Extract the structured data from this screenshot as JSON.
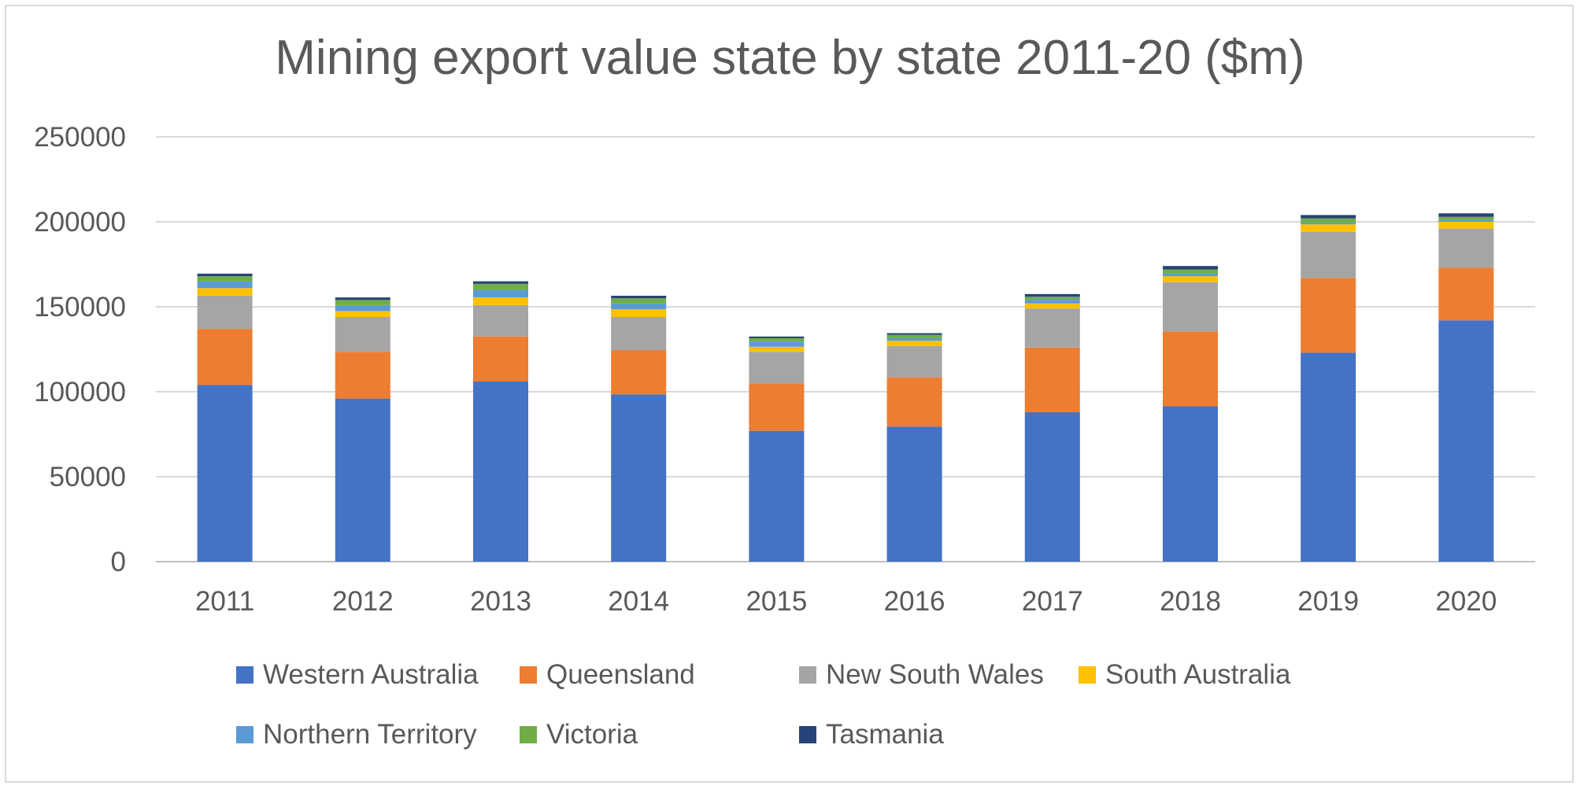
{
  "chart_data": {
    "type": "bar",
    "stacked": true,
    "title": "Mining export value state by state 2011-20 ($m)",
    "xlabel": "",
    "ylabel": "",
    "ylim": [
      0,
      250000
    ],
    "yticks": [
      "0",
      "50000",
      "100000",
      "150000",
      "200000",
      "250000"
    ],
    "grid": true,
    "legend_position": "bottom",
    "categories": [
      "2011",
      "2012",
      "2013",
      "2014",
      "2015",
      "2016",
      "2017",
      "2018",
      "2019",
      "2020"
    ],
    "series": [
      {
        "name": "Western Australia",
        "color": "#4472C4",
        "values": [
          104000,
          96000,
          106000,
          98500,
          77000,
          79500,
          88000,
          91500,
          123000,
          142000
        ]
      },
      {
        "name": "Queensland",
        "color": "#ED7D31",
        "values": [
          33000,
          27500,
          26500,
          26000,
          28000,
          29000,
          38000,
          44000,
          44000,
          31000
        ]
      },
      {
        "name": "New South Wales",
        "color": "#A5A5A5",
        "values": [
          19500,
          20500,
          18500,
          19500,
          18500,
          18500,
          23000,
          29000,
          27000,
          23000
        ]
      },
      {
        "name": "South Australia",
        "color": "#FFC000",
        "values": [
          4500,
          3500,
          4500,
          4500,
          3000,
          3000,
          3000,
          3500,
          4500,
          4000
        ]
      },
      {
        "name": "Northern Territory",
        "color": "#5B9BD5",
        "values": [
          4000,
          3500,
          4500,
          3500,
          3000,
          1500,
          2000,
          1500,
          1000,
          1000
        ]
      },
      {
        "name": "Victoria",
        "color": "#70AD47",
        "values": [
          3000,
          3000,
          3500,
          3000,
          2000,
          2000,
          2000,
          2500,
          2500,
          2000
        ]
      },
      {
        "name": "Tasmania",
        "color": "#264478",
        "values": [
          1500,
          1500,
          1500,
          1500,
          1000,
          1000,
          1500,
          2000,
          2000,
          2000
        ]
      }
    ]
  }
}
